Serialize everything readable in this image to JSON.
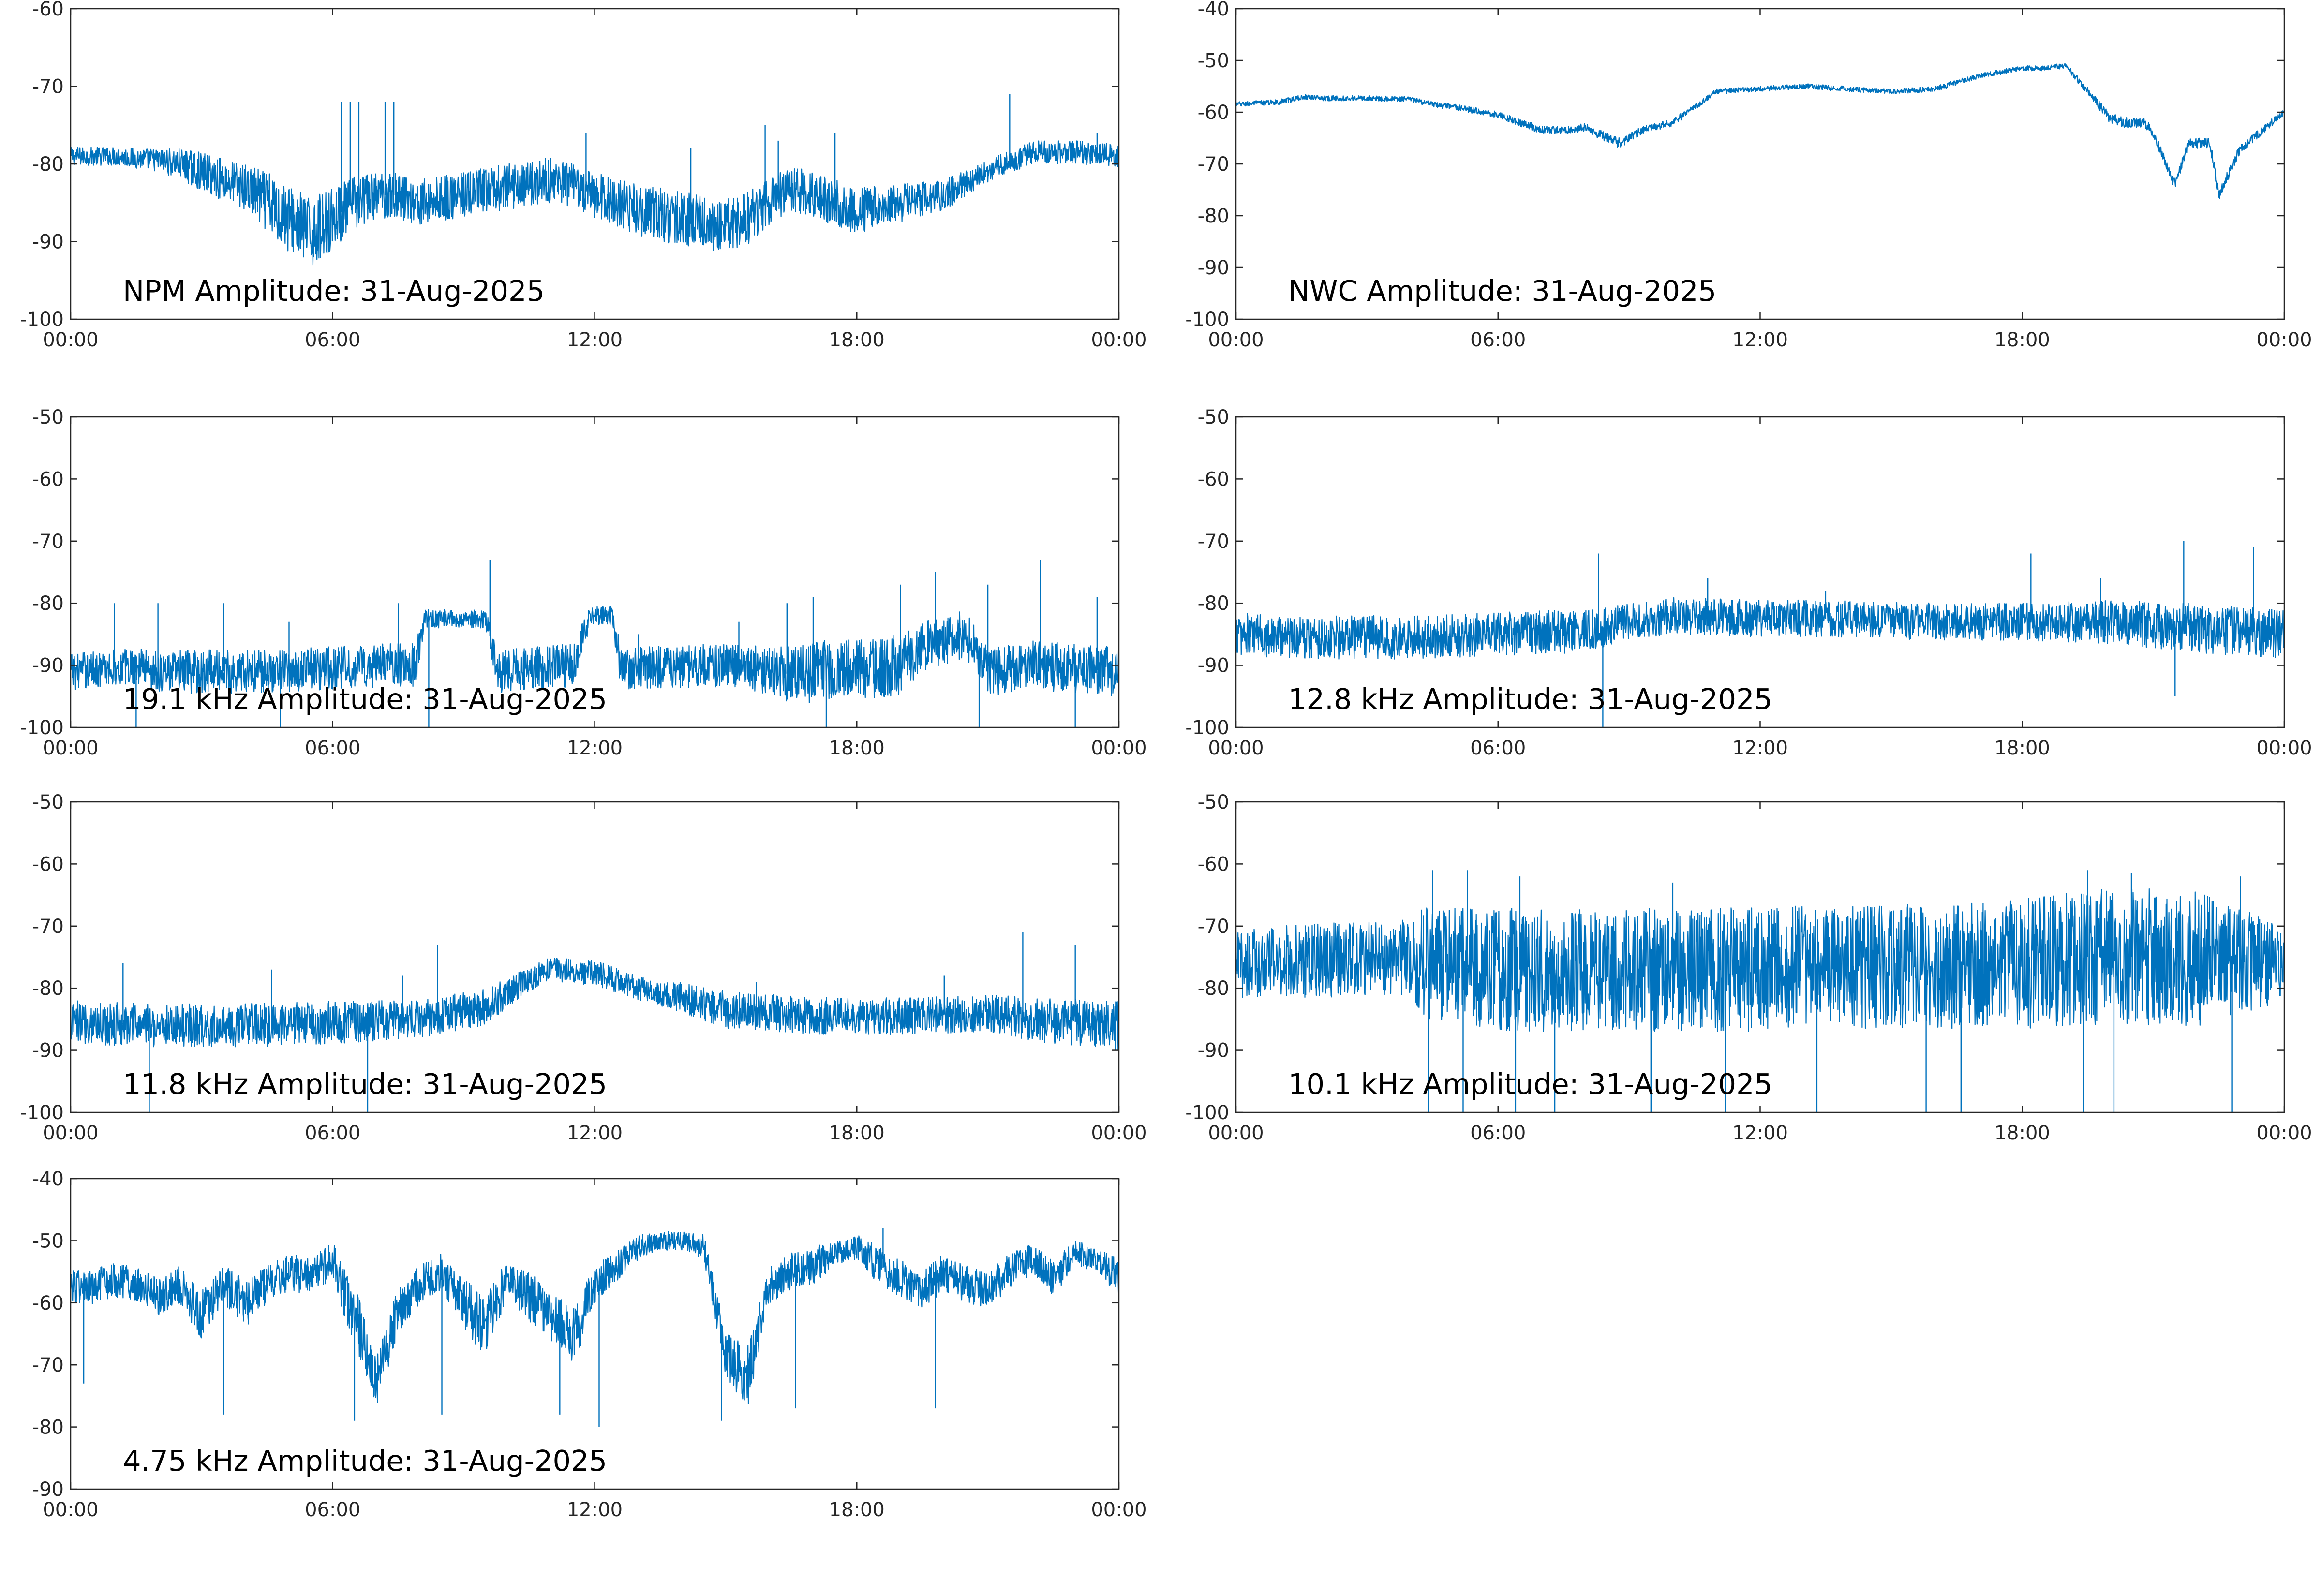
{
  "figure": {
    "line_color": "#0072BD",
    "axes_color": "#262626",
    "background": "#FFFFFF"
  },
  "chart_data": [
    {
      "type": "line",
      "title": "NPM Amplitude: 31-Aug-2025",
      "xlabel": "",
      "ylabel": "",
      "x_ticks": [
        "00:00",
        "06:00",
        "12:00",
        "18:00",
        "00:00"
      ],
      "x_tick_hours": [
        0,
        6,
        12,
        18,
        24
      ],
      "ylim": [
        -100,
        -60
      ],
      "y_ticks": [
        -100,
        -90,
        -80,
        -70,
        -60
      ],
      "grid": false,
      "series": [
        {
          "x": [
            0,
            1,
            2,
            2.5,
            3,
            4,
            4.5,
            5,
            5.5,
            6,
            6.5,
            7,
            7.5,
            8,
            9,
            10,
            11,
            12,
            13,
            14,
            15,
            15.5,
            16,
            16.5,
            17,
            17.5,
            18,
            19,
            20,
            21,
            22,
            23,
            24
          ],
          "mean": [
            -79,
            -79,
            -79.5,
            -80,
            -81,
            -83,
            -85,
            -87,
            -89,
            -87,
            -85,
            -84,
            -84,
            -85,
            -84,
            -83,
            -82,
            -84,
            -86,
            -87,
            -88,
            -87,
            -85,
            -83,
            -84,
            -85,
            -86,
            -85,
            -84,
            -81,
            -78.5,
            -78.5,
            -79
          ],
          "spread": [
            1.2,
            1.2,
            1.5,
            2,
            2.5,
            3,
            4,
            4.5,
            4.5,
            4,
            3.5,
            3,
            3,
            3,
            3,
            3,
            3,
            3,
            3.5,
            3.5,
            3.5,
            3.5,
            3,
            3,
            3,
            3,
            3,
            2.5,
            2,
            1.5,
            1.5,
            1.5,
            1.5
          ],
          "spikes": [
            [
              6.2,
              -72
            ],
            [
              6.4,
              -72
            ],
            [
              6.6,
              -72
            ],
            [
              7.2,
              -72
            ],
            [
              7.4,
              -72
            ],
            [
              11.8,
              -76
            ],
            [
              14.2,
              -78
            ],
            [
              15.9,
              -75
            ],
            [
              16.2,
              -77
            ],
            [
              17.5,
              -76
            ],
            [
              21.5,
              -71
            ],
            [
              23.5,
              -76
            ]
          ]
        }
      ]
    },
    {
      "type": "line",
      "title": "NWC Amplitude: 31-Aug-2025",
      "xlabel": "",
      "ylabel": "",
      "x_ticks": [
        "00:00",
        "06:00",
        "12:00",
        "18:00",
        "00:00"
      ],
      "x_tick_hours": [
        0,
        6,
        12,
        18,
        24
      ],
      "ylim": [
        -100,
        -40
      ],
      "y_ticks": [
        -100,
        -90,
        -80,
        -70,
        -60,
        -50,
        -40
      ],
      "grid": false,
      "series": [
        {
          "x": [
            0,
            1,
            1.6,
            2,
            3,
            4,
            4.5,
            5,
            6,
            6.5,
            7,
            7.5,
            8,
            8.5,
            8.8,
            9.3,
            10,
            10.5,
            11,
            12,
            13,
            14,
            15,
            16,
            17,
            18,
            18.5,
            19,
            19.5,
            20,
            20.3,
            20.8,
            21,
            21.5,
            21.8,
            22,
            22.3,
            22.5,
            23,
            24
          ],
          "mean": [
            -58.5,
            -58,
            -57,
            -57.3,
            -57.3,
            -57.5,
            -58.5,
            -59,
            -60.5,
            -62,
            -63.5,
            -63.5,
            -63,
            -65,
            -66,
            -63.5,
            -62,
            -59,
            -56,
            -55.5,
            -55,
            -55.5,
            -56,
            -55.5,
            -53,
            -51.5,
            -51.5,
            -51,
            -56,
            -61,
            -62,
            -62,
            -64,
            -74,
            -66,
            -66,
            -66,
            -76,
            -67,
            -60
          ],
          "spread": [
            0.5,
            0.5,
            0.5,
            0.5,
            0.5,
            0.5,
            0.5,
            0.6,
            0.6,
            0.7,
            0.8,
            0.8,
            0.8,
            1,
            1,
            0.8,
            0.7,
            0.6,
            0.5,
            0.5,
            0.5,
            0.5,
            0.5,
            0.5,
            0.5,
            0.5,
            0.5,
            0.5,
            0.8,
            1,
            1,
            1,
            1,
            1.2,
            1,
            1,
            1,
            1.2,
            1,
            0.6
          ],
          "spikes": []
        }
      ]
    },
    {
      "type": "line",
      "title": "19.1 kHz Amplitude: 31-Aug-2025",
      "xlabel": "",
      "ylabel": "",
      "x_ticks": [
        "00:00",
        "06:00",
        "12:00",
        "18:00",
        "00:00"
      ],
      "x_tick_hours": [
        0,
        6,
        12,
        18,
        24
      ],
      "ylim": [
        -100,
        -50
      ],
      "y_ticks": [
        -100,
        -90,
        -80,
        -70,
        -60,
        -50
      ],
      "grid": false,
      "series": [
        {
          "x": [
            0,
            1.6,
            2,
            4,
            6,
            7,
            7.9,
            8.1,
            9.5,
            9.8,
            11.5,
            11.9,
            12.4,
            12.6,
            15,
            16.2,
            16.5,
            19,
            19.5,
            20,
            20.5,
            21,
            22,
            24
          ],
          "mean": [
            -91,
            -90,
            -91,
            -91,
            -90.5,
            -90,
            -90,
            -82.5,
            -82.5,
            -91,
            -90,
            -82,
            -82,
            -90.5,
            -90,
            -91,
            -91.5,
            -90,
            -87,
            -86,
            -85,
            -91,
            -90,
            -91
          ],
          "spread": [
            3,
            3,
            3.5,
            3.5,
            3.5,
            3.5,
            3.5,
            1.5,
            1.5,
            3.5,
            3.5,
            1.5,
            1.5,
            3.5,
            3.5,
            4,
            5,
            5,
            4,
            4,
            4,
            4,
            4,
            4
          ],
          "spikes": [
            [
              1,
              -80
            ],
            [
              2,
              -80
            ],
            [
              3.5,
              -80
            ],
            [
              5,
              -83
            ],
            [
              7.5,
              -80
            ],
            [
              9.6,
              -73
            ],
            [
              13,
              -85
            ],
            [
              15.3,
              -83
            ],
            [
              16.4,
              -80
            ],
            [
              17,
              -79
            ],
            [
              19,
              -77
            ],
            [
              19.8,
              -75
            ],
            [
              21,
              -77
            ],
            [
              22.2,
              -73
            ],
            [
              23.5,
              -79
            ],
            [
              1.5,
              -100
            ],
            [
              4.8,
              -100
            ],
            [
              8.2,
              -100
            ],
            [
              17.3,
              -100
            ],
            [
              20.8,
              -100
            ],
            [
              23,
              -100
            ]
          ]
        }
      ]
    },
    {
      "type": "line",
      "title": "12.8 kHz Amplitude: 31-Aug-2025",
      "xlabel": "",
      "ylabel": "",
      "x_ticks": [
        "00:00",
        "06:00",
        "12:00",
        "18:00",
        "00:00"
      ],
      "x_tick_hours": [
        0,
        6,
        12,
        18,
        24
      ],
      "ylim": [
        -100,
        -50
      ],
      "y_ticks": [
        -100,
        -90,
        -80,
        -70,
        -60,
        -50
      ],
      "grid": false,
      "series": [
        {
          "x": [
            0,
            2,
            4,
            6,
            8,
            9,
            10,
            12,
            14,
            16,
            18,
            20,
            22,
            24
          ],
          "mean": [
            -85,
            -85.5,
            -85.5,
            -85,
            -84.5,
            -83,
            -82,
            -82.5,
            -82.5,
            -83,
            -83,
            -83,
            -84,
            -85
          ],
          "spread": [
            3.5,
            3.5,
            3.5,
            3.5,
            3.5,
            3,
            3,
            3,
            3,
            3,
            3,
            3.5,
            4,
            4
          ],
          "spikes": [
            [
              8.3,
              -72
            ],
            [
              10.8,
              -76
            ],
            [
              13.5,
              -78
            ],
            [
              18.2,
              -72
            ],
            [
              19.8,
              -76
            ],
            [
              21.7,
              -70
            ],
            [
              23.3,
              -71
            ],
            [
              8.4,
              -100
            ],
            [
              21.5,
              -95
            ]
          ]
        }
      ]
    },
    {
      "type": "line",
      "title": "11.8 kHz Amplitude: 31-Aug-2025",
      "xlabel": "",
      "ylabel": "",
      "x_ticks": [
        "00:00",
        "06:00",
        "12:00",
        "18:00",
        "00:00"
      ],
      "x_tick_hours": [
        0,
        6,
        12,
        18,
        24
      ],
      "ylim": [
        -100,
        -50
      ],
      "y_ticks": [
        -100,
        -90,
        -80,
        -70,
        -60,
        -50
      ],
      "grid": false,
      "series": [
        {
          "x": [
            0,
            2,
            4,
            6,
            8,
            9.5,
            10.5,
            11,
            12,
            13,
            13.5,
            14,
            15,
            17,
            19,
            21,
            22,
            24
          ],
          "mean": [
            -85.5,
            -86,
            -86,
            -85.5,
            -85,
            -83,
            -78.5,
            -77,
            -77.5,
            -80,
            -81,
            -81.5,
            -83.5,
            -84.5,
            -84.5,
            -84,
            -85,
            -86
          ],
          "spread": [
            3.5,
            3.5,
            3.5,
            3.5,
            3,
            3,
            2,
            2,
            2,
            2,
            2,
            2.5,
            3,
            3,
            3,
            3,
            3.5,
            4
          ],
          "spikes": [
            [
              1.2,
              -76
            ],
            [
              4.6,
              -77
            ],
            [
              7.6,
              -78
            ],
            [
              8.4,
              -73
            ],
            [
              15.7,
              -79
            ],
            [
              20,
              -78
            ],
            [
              21.8,
              -71
            ],
            [
              23,
              -73
            ],
            [
              1.8,
              -100
            ],
            [
              6.8,
              -100
            ]
          ]
        }
      ]
    },
    {
      "type": "line",
      "title": "10.1 kHz Amplitude: 31-Aug-2025",
      "xlabel": "",
      "ylabel": "",
      "x_ticks": [
        "00:00",
        "06:00",
        "12:00",
        "18:00",
        "00:00"
      ],
      "x_tick_hours": [
        0,
        6,
        12,
        18,
        24
      ],
      "ylim": [
        -100,
        -50
      ],
      "y_ticks": [
        -100,
        -90,
        -80,
        -70,
        -60,
        -50
      ],
      "grid": false,
      "series": [
        {
          "x": [
            0,
            2,
            4,
            4.3,
            6,
            8,
            10,
            12,
            14,
            16,
            18,
            19.5,
            21,
            22,
            24
          ],
          "mean": [
            -76,
            -75.5,
            -75,
            -76,
            -77,
            -77,
            -77,
            -77,
            -76.5,
            -76.5,
            -76,
            -75,
            -75,
            -75.5,
            -76
          ],
          "spread": [
            5.5,
            6,
            6,
            9,
            10,
            10,
            10,
            10,
            10,
            10,
            10.5,
            11,
            11,
            11,
            6
          ],
          "spikes": [
            [
              4.5,
              -61
            ],
            [
              5.3,
              -61
            ],
            [
              6.5,
              -62
            ],
            [
              10,
              -63
            ],
            [
              19.5,
              -61
            ],
            [
              20.5,
              -61.5
            ],
            [
              23,
              -62
            ],
            [
              4.4,
              -100
            ],
            [
              5.2,
              -100
            ],
            [
              6.4,
              -100
            ],
            [
              7.3,
              -100
            ],
            [
              9.5,
              -100
            ],
            [
              11.2,
              -100
            ],
            [
              13.3,
              -100
            ],
            [
              15.8,
              -100
            ],
            [
              16.6,
              -100
            ],
            [
              19.4,
              -100
            ],
            [
              20.1,
              -100
            ],
            [
              22.8,
              -100
            ]
          ]
        }
      ]
    },
    {
      "type": "line",
      "title": "4.75 kHz Amplitude: 31-Aug-2025",
      "xlabel": "",
      "ylabel": "",
      "x_ticks": [
        "00:00",
        "06:00",
        "12:00",
        "18:00",
        "00:00"
      ],
      "x_tick_hours": [
        0,
        6,
        12,
        18,
        24
      ],
      "ylim": [
        -90,
        -40
      ],
      "y_ticks": [
        -90,
        -80,
        -70,
        -60,
        -50,
        -40
      ],
      "grid": false,
      "series": [
        {
          "x": [
            0,
            0.5,
            1,
            1.5,
            2,
            2.5,
            3,
            3.5,
            4,
            4.5,
            5,
            5.5,
            6,
            6.3,
            6.6,
            7,
            7.5,
            8,
            8.5,
            9,
            9.5,
            10,
            10.5,
            11,
            11.5,
            12,
            12.5,
            13,
            13.5,
            14,
            14.5,
            15,
            15.5,
            16,
            16.5,
            17,
            17.5,
            18,
            18.5,
            19,
            19.5,
            20,
            20.5,
            21,
            21.5,
            22,
            22.5,
            23,
            23.5,
            24
          ],
          "mean": [
            -57,
            -58,
            -56,
            -57,
            -59,
            -57,
            -62,
            -57,
            -60,
            -57,
            -55,
            -56,
            -53,
            -59,
            -64,
            -73,
            -61,
            -57,
            -55,
            -60,
            -64,
            -56,
            -59,
            -62,
            -66,
            -57,
            -54,
            -51,
            -50,
            -50,
            -51,
            -68,
            -72,
            -57,
            -55,
            -54,
            -52,
            -51,
            -54,
            -56,
            -58,
            -55,
            -57,
            -58,
            -55,
            -53,
            -56,
            -52,
            -53,
            -56
          ],
          "spread": [
            3,
            3,
            3,
            3,
            3,
            3,
            4,
            3,
            4,
            3,
            3,
            3,
            3,
            4,
            5,
            4,
            4,
            3,
            3,
            4,
            5,
            3,
            4,
            4,
            5,
            3,
            2.5,
            2,
            1.5,
            1.5,
            2,
            4,
            5,
            3,
            3,
            3,
            2,
            2,
            3,
            3,
            3,
            3,
            3,
            3,
            3,
            2.5,
            3,
            2,
            2,
            3
          ],
          "spikes": [
            [
              0.3,
              -73
            ],
            [
              3.5,
              -78
            ],
            [
              6.5,
              -79
            ],
            [
              8.5,
              -78
            ],
            [
              11.2,
              -78
            ],
            [
              12.1,
              -80
            ],
            [
              14.9,
              -79
            ],
            [
              16.6,
              -77
            ],
            [
              18.6,
              -48
            ],
            [
              19.8,
              -77
            ]
          ]
        }
      ]
    }
  ]
}
